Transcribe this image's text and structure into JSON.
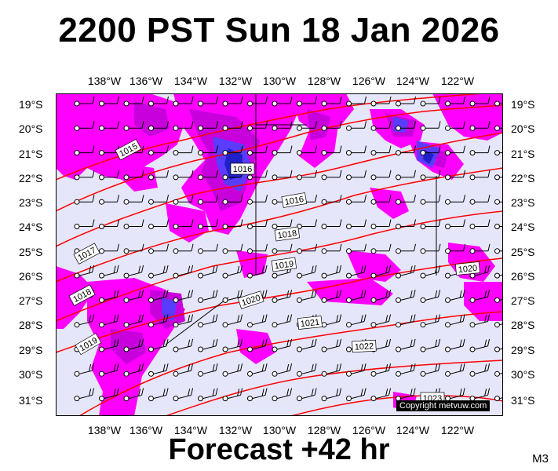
{
  "title": "2200 PST Sun 18 Jan 2026",
  "footer": "Forecast +42 hr",
  "model": "M3",
  "copyright": "Copyright metvuw.com",
  "lon_labels": [
    "138°W",
    "136°W",
    "134°W",
    "132°W",
    "130°W",
    "128°W",
    "126°W",
    "124°W",
    "122°W"
  ],
  "lat_labels": [
    "19°S",
    "20°S",
    "21°S",
    "22°S",
    "23°S",
    "24°S",
    "25°S",
    "26°S",
    "27°S",
    "28°S",
    "29°S",
    "30°S",
    "31°S"
  ],
  "isobar_labels": [
    "1015",
    "1016",
    "1016",
    "1017",
    "1018",
    "1018",
    "1019",
    "1019",
    "1020",
    "1020",
    "1021",
    "1022",
    "1023"
  ],
  "colors": {
    "ocean": "#e6e6fa",
    "rain_light": "#ff00ff",
    "rain_medium": "#c800dc",
    "rain_heavy": "#5a3cff",
    "rain_extreme": "#2020c8",
    "isobar": "#ff0000",
    "wind": "#000000"
  },
  "icons": [
    "wind-barb-icon",
    "station-circle-icon"
  ]
}
